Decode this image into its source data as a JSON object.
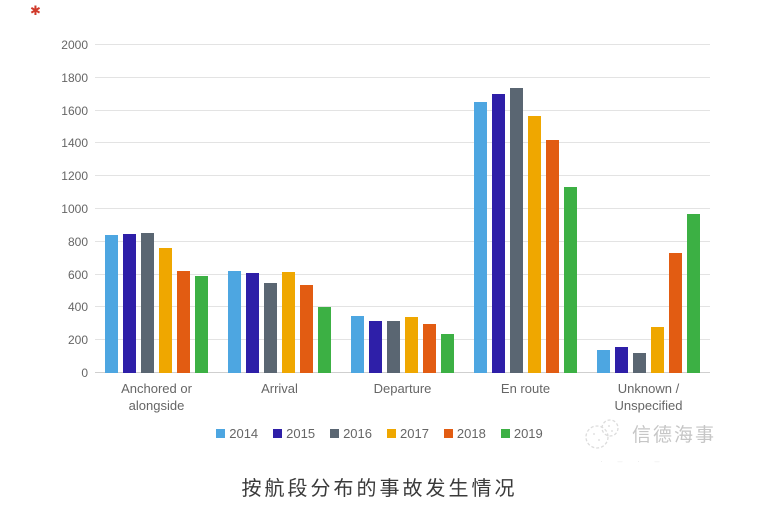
{
  "decorations": {
    "stamp_glyph": "✱"
  },
  "watermark": {
    "text": "信德海事",
    "logo": "xinde-maritime-logo",
    "dashes": "· – · –"
  },
  "caption": "按航段分布的事故发生情况",
  "chart_data": {
    "type": "bar",
    "title": "按航段分布的事故发生情况",
    "categories": [
      "Anchored or alongside",
      "Arrival",
      "Departure",
      "En route",
      "Unknown / Unspecified"
    ],
    "series": [
      {
        "name": "2014",
        "color": "#4da6e1",
        "values": [
          840,
          625,
          345,
          1655,
          140
        ]
      },
      {
        "name": "2015",
        "color": "#2e1fa8",
        "values": [
          850,
          610,
          315,
          1700,
          160
        ]
      },
      {
        "name": "2016",
        "color": "#5a6672",
        "values": [
          855,
          550,
          320,
          1740,
          120
        ]
      },
      {
        "name": "2017",
        "color": "#efa700",
        "values": [
          765,
          615,
          340,
          1565,
          280
        ]
      },
      {
        "name": "2018",
        "color": "#e25c12",
        "values": [
          620,
          535,
          300,
          1420,
          730
        ]
      },
      {
        "name": "2019",
        "color": "#3cb044",
        "values": [
          590,
          405,
          240,
          1135,
          970
        ]
      }
    ],
    "ylim": [
      0,
      2000
    ],
    "ytick_step": 200,
    "xlabel": "",
    "ylabel": "",
    "grid": true,
    "legend_position": "bottom",
    "axis_color": "#666666",
    "grid_color": "#e3e3e3"
  }
}
